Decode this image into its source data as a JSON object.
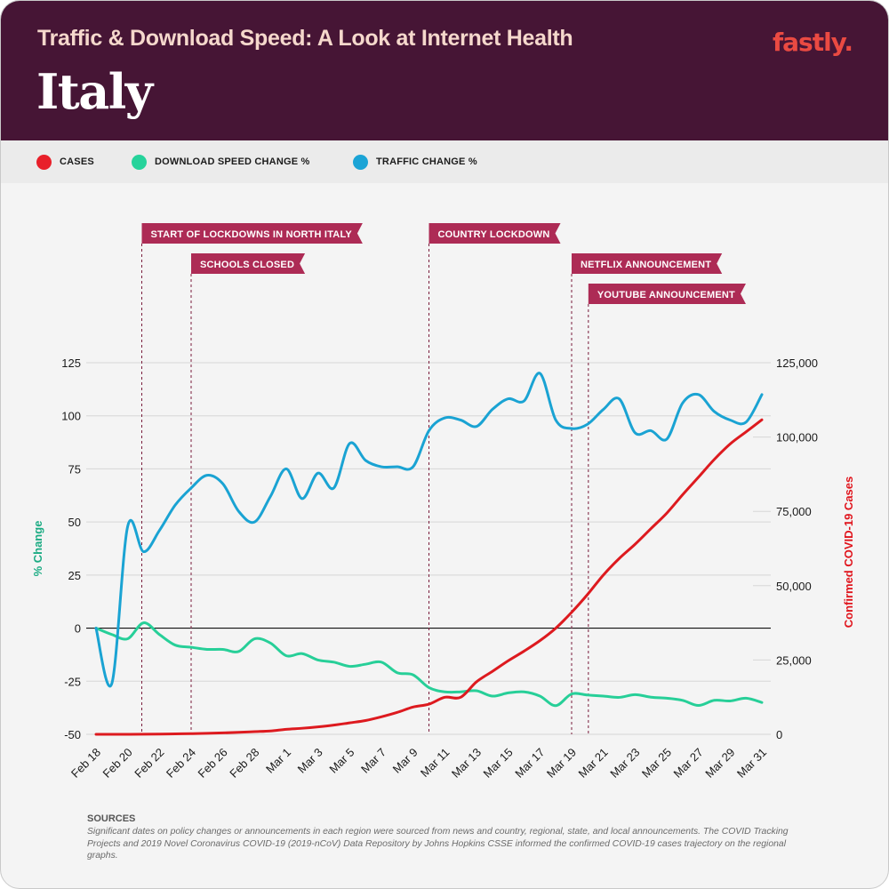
{
  "header": {
    "supertitle": "Traffic & Download Speed: A Look at Internet Health",
    "title": "Italy",
    "logo": "fastly."
  },
  "legend": [
    {
      "label": "CASES",
      "color": "#e8202a"
    },
    {
      "label": "DOWNLOAD SPEED CHANGE %",
      "color": "#26d39b"
    },
    {
      "label": "TRAFFIC CHANGE %",
      "color": "#1ba4d6"
    }
  ],
  "colors": {
    "header_bg": "#461535",
    "banner": "#ad2b55",
    "cases": "#dd1a1f",
    "download": "#27cf98",
    "traffic": "#1aa3d3"
  },
  "sources": {
    "title": "SOURCES",
    "text": "Significant dates on policy changes or announcements in each region were sourced from news and country, regional, state, and local announcements. The COVID Tracking Projects and 2019 Novel Coronavirus COVID-19 (2019-nCoV) Data Repository by Johns Hopkins CSSE informed the confirmed COVID-19 cases trajectory on the regional graphs."
  },
  "chart_data": {
    "type": "line",
    "title": "Italy",
    "xlabel": "",
    "ylabel_left": "% Change",
    "ylabel_right": "Confirmed COVID-19 Cases",
    "ylim_left": [
      -50,
      125
    ],
    "ylim_right": [
      0,
      125000
    ],
    "yticks_left": [
      "125",
      "100",
      "75",
      "50",
      "25",
      "0",
      "-25",
      "-50"
    ],
    "yticks_left_values": [
      125,
      100,
      75,
      50,
      25,
      0,
      -25,
      -50
    ],
    "yticks_right": [
      "125,000",
      "100,000",
      "75,000",
      "50,000",
      "25,000",
      "0"
    ],
    "yticks_right_values": [
      125000,
      100000,
      75000,
      50000,
      25000,
      0
    ],
    "grid": true,
    "legend_position": "top-left",
    "x": [
      "Feb 18",
      "Feb 19",
      "Feb 20",
      "Feb 21",
      "Feb 22",
      "Feb 23",
      "Feb 24",
      "Feb 25",
      "Feb 26",
      "Feb 27",
      "Feb 28",
      "Feb 29",
      "Mar 1",
      "Mar 2",
      "Mar 3",
      "Mar 4",
      "Mar 5",
      "Mar 6",
      "Mar 7",
      "Mar 8",
      "Mar 9",
      "Mar 10",
      "Mar 11",
      "Mar 12",
      "Mar 13",
      "Mar 14",
      "Mar 15",
      "Mar 16",
      "Mar 17",
      "Mar 18",
      "Mar 19",
      "Mar 20",
      "Mar 21",
      "Mar 22",
      "Mar 23",
      "Mar 24",
      "Mar 25",
      "Mar 26",
      "Mar 27",
      "Mar 28",
      "Mar 29",
      "Mar 30",
      "Mar 31"
    ],
    "xtick_labels": [
      "Feb 18",
      "Feb 20",
      "Feb 22",
      "Feb 24",
      "Feb 26",
      "Feb 28",
      "Mar 1",
      "Mar 3",
      "Mar 5",
      "Mar 7",
      "Mar 9",
      "Mar 11",
      "Mar 13",
      "Mar 15",
      "Mar 17",
      "Mar 19",
      "Mar 21",
      "Mar 23",
      "Mar 25",
      "Mar 27",
      "Mar 29",
      "Mar 31"
    ],
    "series": [
      {
        "name": "TRAFFIC CHANGE %",
        "axis": "left",
        "values": [
          0,
          -26,
          48,
          36,
          46,
          58,
          66,
          72,
          68,
          55,
          50,
          62,
          75,
          61,
          73,
          66,
          87,
          79,
          76,
          76,
          76,
          93,
          99,
          98,
          95,
          103,
          108,
          107,
          120,
          98,
          94,
          96,
          103,
          108,
          92,
          93,
          89,
          106,
          110,
          102,
          98,
          97,
          110
        ]
      },
      {
        "name": "DOWNLOAD SPEED CHANGE %",
        "axis": "left",
        "values": [
          0,
          -3,
          -5,
          2.5,
          -3,
          -8,
          -9,
          -10,
          -10,
          -11,
          -5,
          -7,
          -13,
          -12,
          -15,
          -16,
          -18,
          -17,
          -16,
          -21,
          -22,
          -28,
          -30,
          -30,
          -29.5,
          -32,
          -30.5,
          -30,
          -32,
          -36.5,
          -31,
          -31.5,
          -32,
          -32.6,
          -31.3,
          -32.5,
          -33,
          -34,
          -36.4,
          -34,
          -34.3,
          -33,
          -35
        ]
      },
      {
        "name": "CASES",
        "axis": "right",
        "values": [
          3,
          3,
          3,
          20,
          79,
          157,
          229,
          323,
          470,
          655,
          889,
          1128,
          1694,
          2036,
          2502,
          3089,
          3858,
          4636,
          5883,
          7375,
          9172,
          10149,
          12462,
          12462,
          17660,
          21157,
          24747,
          27980,
          31506,
          35713,
          41035,
          47021,
          53578,
          59138,
          63927,
          69176,
          74386,
          80589,
          86498,
          92472,
          97689,
          101739,
          105792
        ]
      }
    ],
    "annotations": [
      {
        "label": "START OF LOCKDOWNS IN NORTH ITALY",
        "date": "Feb 21",
        "row": 0
      },
      {
        "label": "SCHOOLS CLOSED",
        "date": "Feb 24",
        "row": 1
      },
      {
        "label": "COUNTRY LOCKDOWN",
        "date": "Mar 10",
        "row": 0
      },
      {
        "label": "NETFLIX ANNOUNCEMENT",
        "date": "Mar 19",
        "row": 1
      },
      {
        "label": "YOUTUBE ANNOUNCEMENT",
        "date": "Mar 20",
        "row": 2
      }
    ]
  }
}
